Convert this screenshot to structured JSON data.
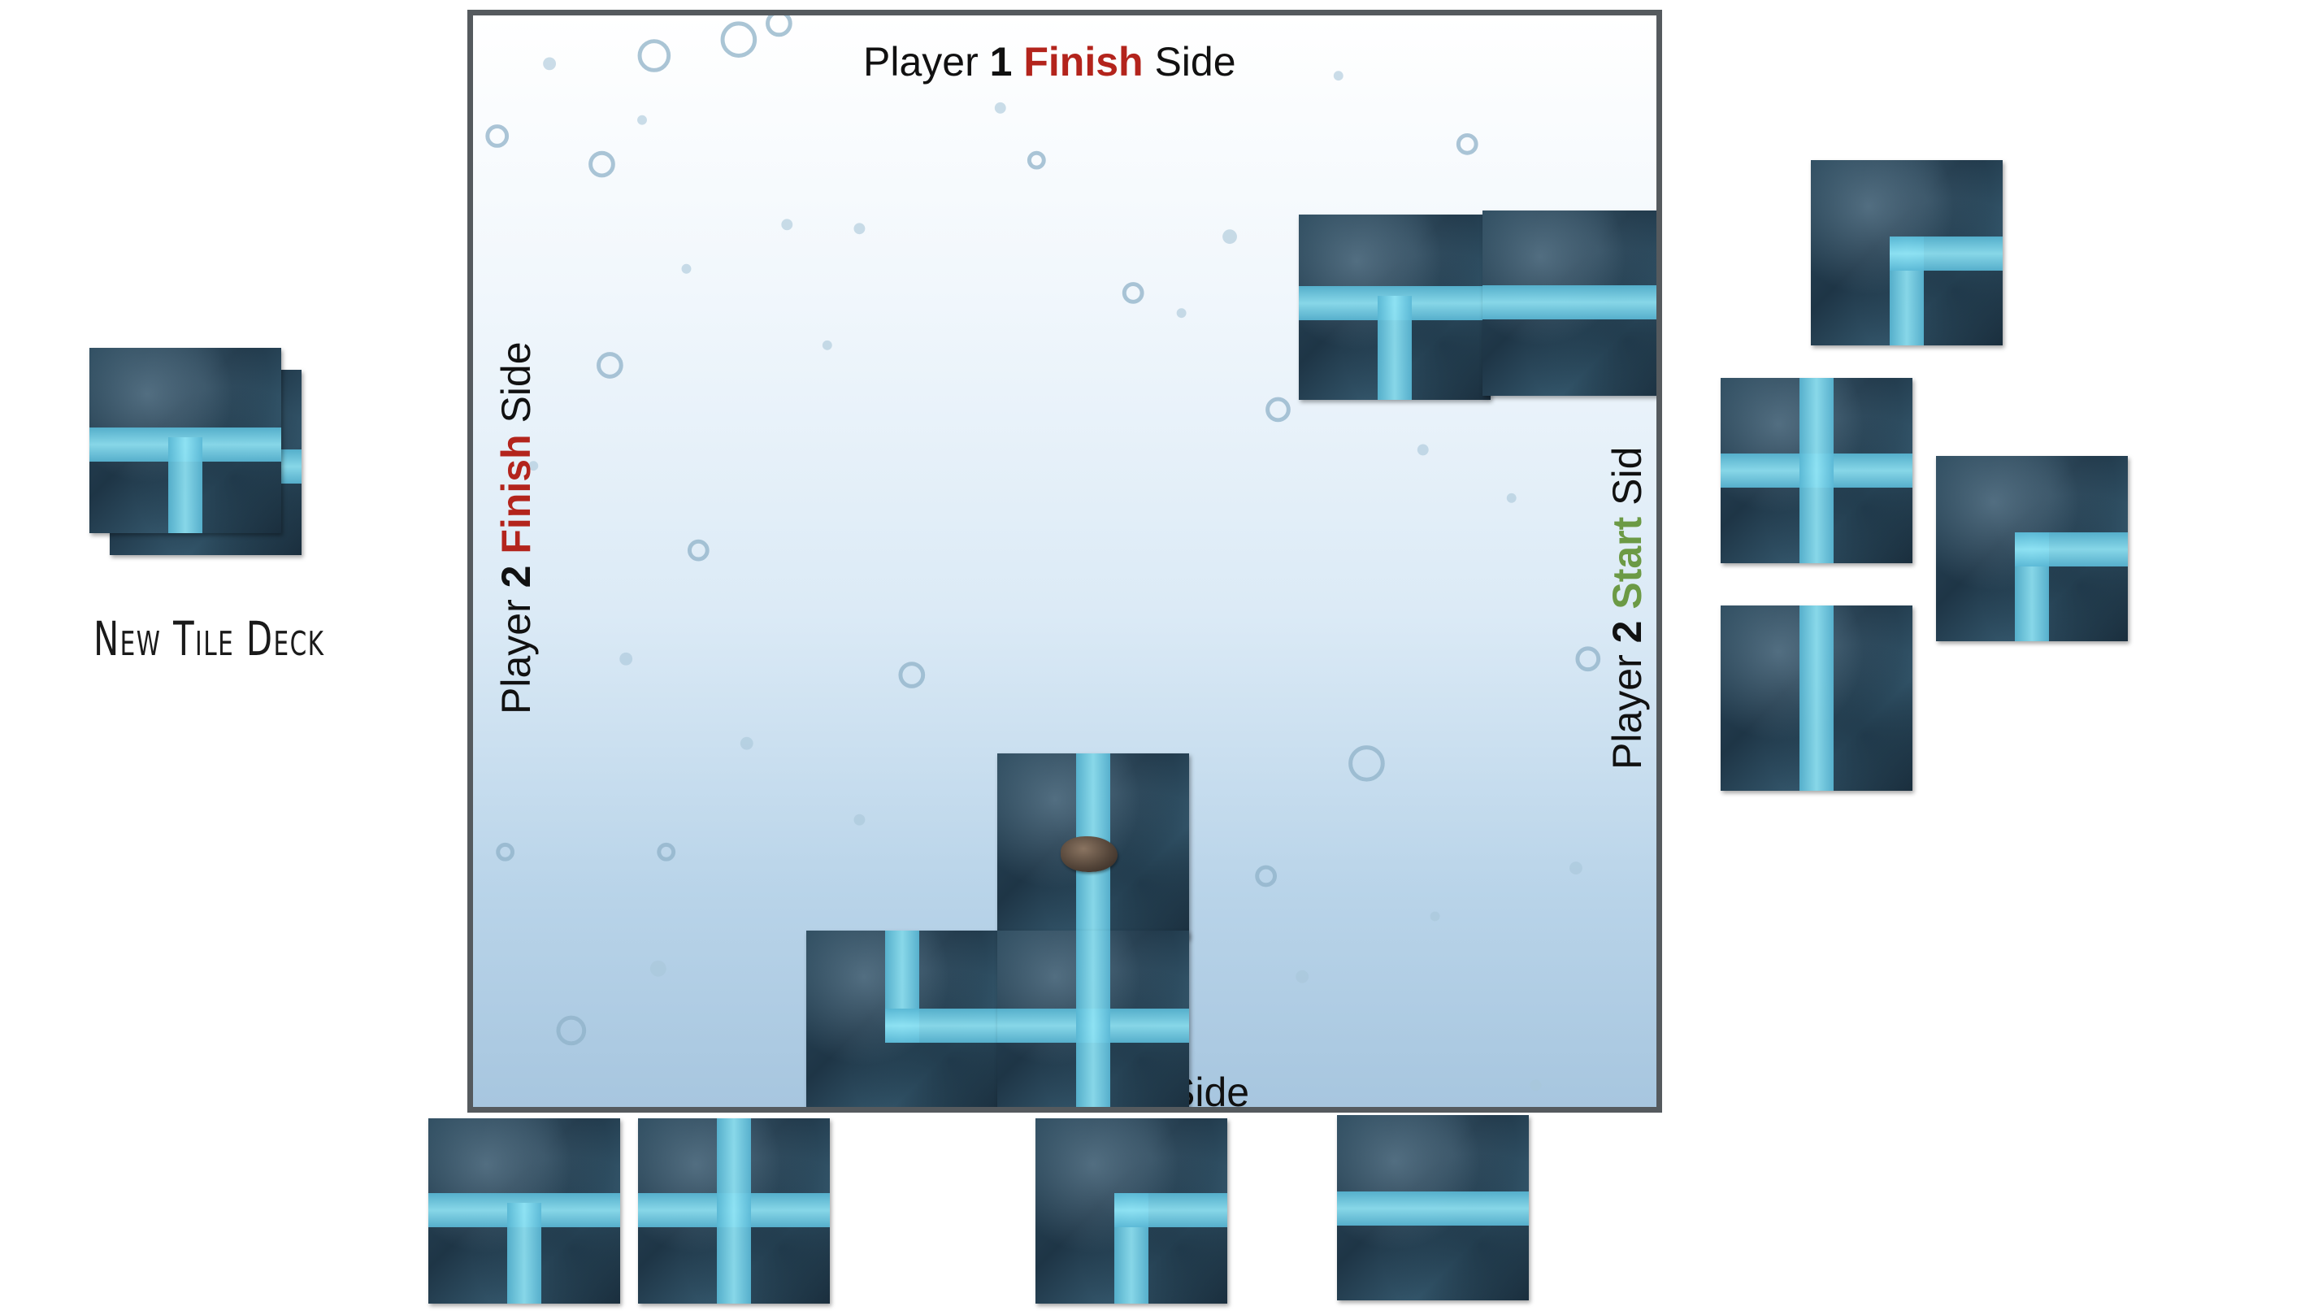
{
  "board": {
    "top_label": {
      "prefix": "Player ",
      "num": "1",
      "key": "Finish",
      "suffix": " Side"
    },
    "left_label": {
      "prefix": "Player ",
      "num": "2",
      "key": "Finish",
      "suffix": " Side"
    },
    "right_label": {
      "prefix": "Player ",
      "num": "2",
      "key": "Start",
      "suffix": " Sid"
    },
    "bottom_label": {
      "text": "Side"
    }
  },
  "deck": {
    "label": "New Tile Deck"
  },
  "tiles": {
    "board_placed": [
      "t-junction",
      "straight-horizontal",
      "straight-vertical",
      "corner",
      "cross"
    ],
    "right_hand": [
      "corner",
      "cross",
      "corner",
      "straight-vertical"
    ],
    "bottom_hand": [
      "t-junction",
      "cross",
      "corner",
      "straight-horizontal"
    ],
    "deck_top": "t-junction"
  },
  "colors": {
    "finish": "#b3241c",
    "start": "#6c9a45",
    "water": "#8fe3f4",
    "board_border": "#555a5e"
  },
  "icons": {
    "game_piece": "pebble-icon"
  }
}
